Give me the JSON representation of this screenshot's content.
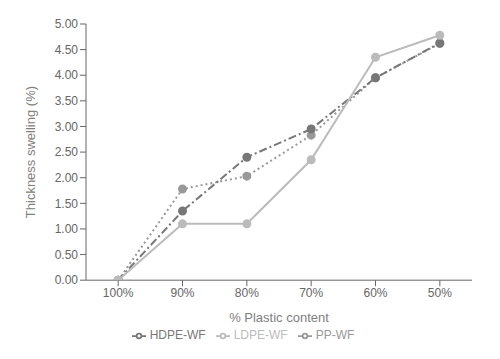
{
  "chart_data": {
    "type": "line",
    "xlabel": "% Plastic content",
    "ylabel": "Thickness swelling (%)",
    "x": [
      100,
      90,
      80,
      70,
      60,
      50
    ],
    "series": [
      {
        "name": "PP-WF",
        "color": "#999999",
        "values": [
          0.0,
          1.78,
          2.03,
          2.83,
          3.95,
          4.62
        ],
        "marker": "circle",
        "line_style": "dotted"
      },
      {
        "name": "HDPE-WF",
        "color": "#777777",
        "values": [
          0.0,
          1.35,
          2.4,
          2.95,
          3.95,
          4.63
        ],
        "marker": "circle",
        "line_style": "dashdot"
      },
      {
        "name": "LDPE-WF",
        "color": "#bbbbbb",
        "values": [
          0.0,
          1.1,
          1.1,
          2.35,
          4.35,
          4.78
        ],
        "marker": "circle",
        "line_style": "solid"
      }
    ],
    "xlim": [
      105,
      45
    ],
    "xticks": [
      {
        "value": 100,
        "label": "100%"
      },
      {
        "value": 90,
        "label": "90%"
      },
      {
        "value": 80,
        "label": "80%"
      },
      {
        "value": 70,
        "label": "70%"
      },
      {
        "value": 60,
        "label": "60%"
      },
      {
        "value": 50,
        "label": "50%"
      }
    ],
    "ylim": [
      0.0,
      5.0
    ],
    "yticks": [
      {
        "value": 0.0,
        "label": "0.00"
      },
      {
        "value": 0.5,
        "label": "0.50"
      },
      {
        "value": 1.0,
        "label": "1.00"
      },
      {
        "value": 1.5,
        "label": "1.50"
      },
      {
        "value": 2.0,
        "label": "2.00"
      },
      {
        "value": 2.5,
        "label": "2.50"
      },
      {
        "value": 3.0,
        "label": "3.00"
      },
      {
        "value": 3.5,
        "label": "3.50"
      },
      {
        "value": 4.0,
        "label": "4.00"
      },
      {
        "value": 4.5,
        "label": "4.50"
      },
      {
        "value": 5.0,
        "label": "5.00"
      }
    ],
    "grid": false,
    "legend": "bottom"
  }
}
